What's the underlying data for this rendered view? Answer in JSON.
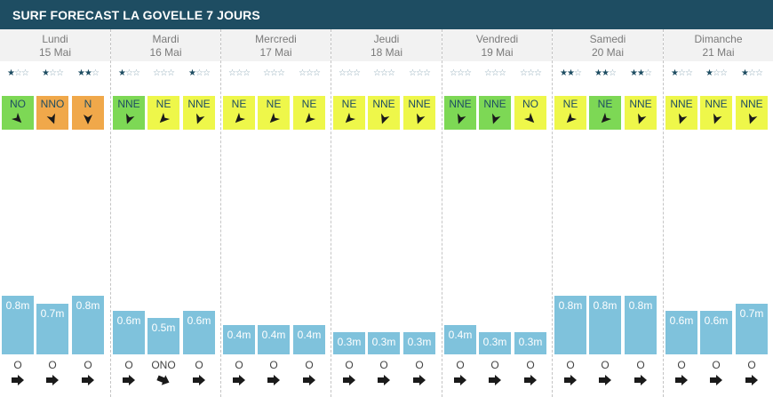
{
  "title": "SURF FORECAST LA GOVELLE 7 JOURS",
  "colors": {
    "header": "#1e4d62",
    "bar": "#7fc2dc",
    "wind_lime": "#eef74a",
    "wind_green": "#7dd855",
    "wind_orange": "#f0a84a"
  },
  "days": [
    {
      "name": "Lundi",
      "date": "15 Mai",
      "slots": [
        {
          "stars": 1,
          "wind": "NO",
          "wind_color": "wind_green",
          "height_m": 0.8,
          "label": "0.8m",
          "swell_dir": "O"
        },
        {
          "stars": 1,
          "wind": "NNO",
          "wind_color": "wind_orange",
          "height_m": 0.7,
          "label": "0.7m",
          "swell_dir": "O"
        },
        {
          "stars": 2,
          "wind": "N",
          "wind_color": "wind_orange",
          "height_m": 0.8,
          "label": "0.8m",
          "swell_dir": "O"
        }
      ]
    },
    {
      "name": "Mardi",
      "date": "16 Mai",
      "slots": [
        {
          "stars": 1,
          "wind": "NNE",
          "wind_color": "wind_green",
          "height_m": 0.6,
          "label": "0.6m",
          "swell_dir": "O"
        },
        {
          "stars": 0,
          "wind": "NE",
          "wind_color": "wind_lime",
          "height_m": 0.5,
          "label": "0.5m",
          "swell_dir": "ONO"
        },
        {
          "stars": 1,
          "wind": "NNE",
          "wind_color": "wind_lime",
          "height_m": 0.6,
          "label": "0.6m",
          "swell_dir": "O"
        }
      ]
    },
    {
      "name": "Mercredi",
      "date": "17 Mai",
      "slots": [
        {
          "stars": 0,
          "wind": "NE",
          "wind_color": "wind_lime",
          "height_m": 0.4,
          "label": "0.4m",
          "swell_dir": "O"
        },
        {
          "stars": 0,
          "wind": "NE",
          "wind_color": "wind_lime",
          "height_m": 0.4,
          "label": "0.4m",
          "swell_dir": "O"
        },
        {
          "stars": 0,
          "wind": "NE",
          "wind_color": "wind_lime",
          "height_m": 0.4,
          "label": "0.4m",
          "swell_dir": "O"
        }
      ]
    },
    {
      "name": "Jeudi",
      "date": "18 Mai",
      "slots": [
        {
          "stars": 0,
          "wind": "NE",
          "wind_color": "wind_lime",
          "height_m": 0.3,
          "label": "0.3m",
          "swell_dir": "O"
        },
        {
          "stars": 0,
          "wind": "NNE",
          "wind_color": "wind_lime",
          "height_m": 0.3,
          "label": "0.3m",
          "swell_dir": "O"
        },
        {
          "stars": 0,
          "wind": "NNE",
          "wind_color": "wind_lime",
          "height_m": 0.3,
          "label": "0.3m",
          "swell_dir": "O"
        }
      ]
    },
    {
      "name": "Vendredi",
      "date": "19 Mai",
      "slots": [
        {
          "stars": 0,
          "wind": "NNE",
          "wind_color": "wind_green",
          "height_m": 0.4,
          "label": "0.4m",
          "swell_dir": "O"
        },
        {
          "stars": 0,
          "wind": "NNE",
          "wind_color": "wind_green",
          "height_m": 0.3,
          "label": "0.3m",
          "swell_dir": "O"
        },
        {
          "stars": 0,
          "wind": "NO",
          "wind_color": "wind_lime",
          "height_m": 0.3,
          "label": "0.3m",
          "swell_dir": "O"
        }
      ]
    },
    {
      "name": "Samedi",
      "date": "20 Mai",
      "slots": [
        {
          "stars": 2,
          "wind": "NE",
          "wind_color": "wind_lime",
          "height_m": 0.8,
          "label": "0.8m",
          "swell_dir": "O"
        },
        {
          "stars": 2,
          "wind": "NE",
          "wind_color": "wind_green",
          "height_m": 0.8,
          "label": "0.8m",
          "swell_dir": "O"
        },
        {
          "stars": 2,
          "wind": "NNE",
          "wind_color": "wind_lime",
          "height_m": 0.8,
          "label": "0.8m",
          "swell_dir": "O"
        }
      ]
    },
    {
      "name": "Dimanche",
      "date": "21 Mai",
      "slots": [
        {
          "stars": 1,
          "wind": "NNE",
          "wind_color": "wind_lime",
          "height_m": 0.6,
          "label": "0.6m",
          "swell_dir": "O"
        },
        {
          "stars": 1,
          "wind": "NNE",
          "wind_color": "wind_lime",
          "height_m": 0.6,
          "label": "0.6m",
          "swell_dir": "O"
        },
        {
          "stars": 1,
          "wind": "NNE",
          "wind_color": "wind_lime",
          "height_m": 0.7,
          "label": "0.7m",
          "swell_dir": "O"
        }
      ]
    }
  ]
}
